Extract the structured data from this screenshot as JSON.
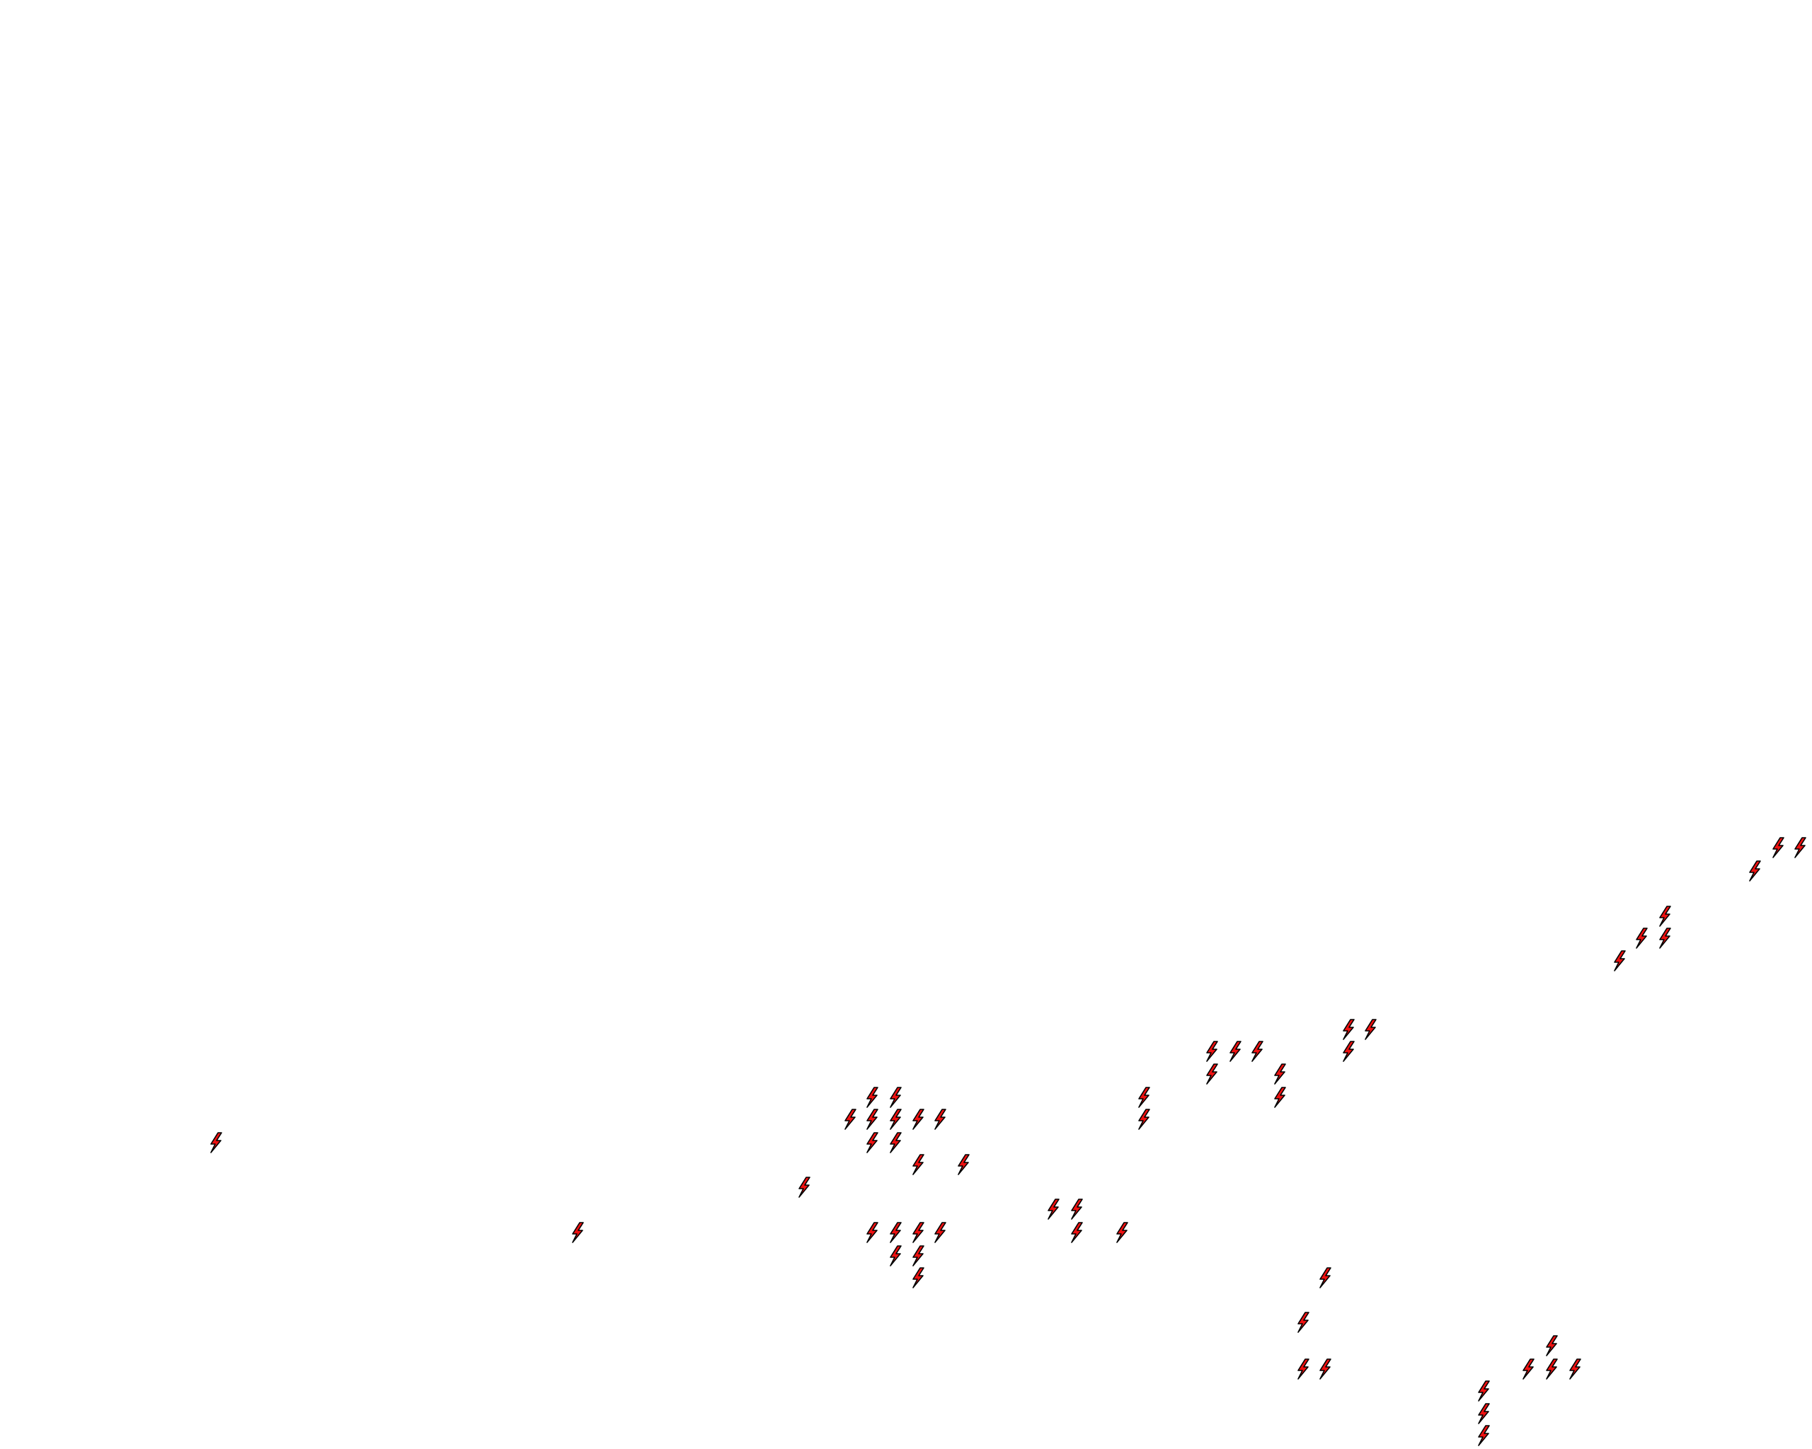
{
  "map": {
    "background_color": "#ffffff",
    "marker": {
      "icon": "lightning-bolt-icon",
      "fill_color": "#ee1111",
      "stroke_color": "#000000"
    }
  }
}
